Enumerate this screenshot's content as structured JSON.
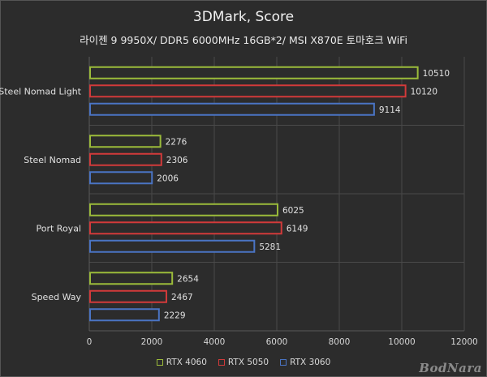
{
  "chart_data": {
    "type": "bar",
    "orientation": "horizontal",
    "title": "3DMark, Score",
    "subtitle": "라이젠 9 9950X/ DDR5 6000MHz 16GB*2/ MSI X870E 토마호크 WiFi",
    "categories": [
      "Steel Nomad Light",
      "Steel Nomad",
      "Port Royal",
      "Speed Way"
    ],
    "series": [
      {
        "name": "RTX 4060",
        "color": "#9bbb3a",
        "values": [
          10510,
          2276,
          6025,
          2654
        ]
      },
      {
        "name": "RTX 5050",
        "color": "#d23a3a",
        "values": [
          10120,
          2306,
          6149,
          2467
        ]
      },
      {
        "name": "RTX 3060",
        "color": "#4a74c4",
        "values": [
          9114,
          2006,
          5281,
          2229
        ]
      }
    ],
    "xlim": [
      0,
      12000
    ],
    "xticks": [
      0,
      2000,
      4000,
      6000,
      8000,
      10000,
      12000
    ],
    "grid": true,
    "legend_position": "bottom"
  },
  "watermark": "BodNara"
}
